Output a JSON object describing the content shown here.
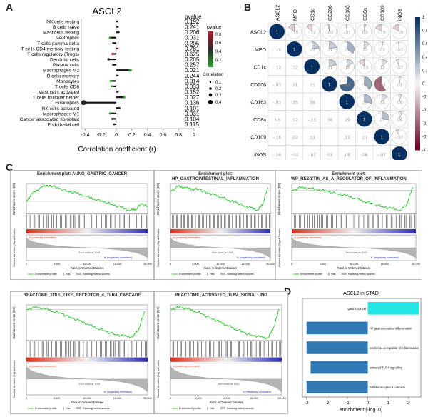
{
  "panels": {
    "a": "A",
    "b": "B",
    "c": "C",
    "d": "D"
  },
  "panel_a": {
    "title": "ASCL2",
    "pvalue_header": "pvalue",
    "xlabel": "Correlation coefficient (r)",
    "legend_pvalue_title": "pvalue",
    "legend_pvalue_ticks": [
      "0.8",
      "0.6",
      "0.4",
      "0.2"
    ],
    "legend_corr_title": "Correlation",
    "legend_corr_values": [
      "0.1",
      "0.2",
      "0.3",
      "0.4"
    ]
  },
  "panel_b": {
    "labels": [
      "ASCL2",
      "MPO",
      "CD1c",
      "CD206",
      "CD163",
      "CD8a",
      "CD109",
      "iNOS"
    ],
    "colorbar_ticks": [
      "1",
      "0.8",
      "0.6",
      "0.4",
      "0.2",
      "0",
      "-0.2",
      "-0.4",
      "-0.6",
      "-0.8",
      "-1"
    ]
  },
  "panel_d": {
    "title": "ASCL2 in STAD",
    "xlabel": "enrichment (-log10)"
  },
  "gsea_common": {
    "ylabel_es": "Enrichment score (ES)",
    "ylabel_rank": "Ranked list metric (Signal2Noise)",
    "xlabel": "Rank in Ordered Dataset",
    "pos_label": "'a' (positively correlated)",
    "neg_label": "'b' (negatively correlated)",
    "zero_cross": "Zero cross at 1049",
    "legend_profile": "Enrichment profile",
    "legend_hits": "Hits",
    "legend_ranking": "Ranking metric scores",
    "x_ticks": [
      "0",
      "5,000",
      "10,000",
      "15,000",
      "20,000"
    ]
  },
  "chart_data": [
    {
      "type": "scatter",
      "title": "ASCL2",
      "xlabel": "Correlation coefficient (r)",
      "xlim": [
        -0.45,
        1.0
      ],
      "x_ticks": [
        -0.4,
        -0.2,
        0.0,
        0.2,
        0.4,
        0.6,
        0.8,
        1.0
      ],
      "categories": [
        "NK cells resting",
        "B cells naive",
        "Mast cells resting",
        "Neutrophils",
        "T cells gamma delta",
        "T cells CD4 memory resting",
        "T cells regulatory (Tregs)",
        "Dendritic cells",
        "Plasma cells",
        "Macrophages M2",
        "B cells memory",
        "Monocytes",
        "T cells CD8",
        "Mast cells activated",
        "T cells follicular helper",
        "Eosinophils",
        "NK cells activated",
        "Macrophages M1",
        "Cancer associated fibroblast",
        "Endothelial cell"
      ],
      "r": [
        0.01,
        0.02,
        0.03,
        -0.08,
        -0.04,
        0.02,
        -0.05,
        -0.1,
        -0.04,
        0.18,
        0.02,
        -0.07,
        -0.06,
        0.02,
        0.1,
        -0.42,
        0.04,
        -0.08,
        -0.05,
        -0.03
      ],
      "pvalue": [
        "0.192",
        "0.241",
        "0.206",
        "0.031",
        "0.205",
        "0.781",
        "0.625",
        "0.205",
        "0.257",
        "0.021",
        "0.244",
        "0.014",
        "0.033",
        "0.152",
        "0.027",
        "0.136",
        "0.101",
        "0.031",
        "0.104",
        "0.115"
      ]
    },
    {
      "type": "heatmap",
      "rows": [
        "ASCL2",
        "MPO",
        "CD1c",
        "CD206",
        "CD163",
        "CD8a",
        "CD109",
        "iNOS"
      ],
      "cols": [
        "ASCL2",
        "MPO",
        "CD1c",
        "CD206",
        "CD163",
        "CD8a",
        "CD109",
        "iNOS"
      ],
      "values": [
        [
          1,
          -0.15,
          -0.13,
          -0.03,
          -0.01,
          0.03,
          -0.16,
          -0.16
        ],
        [
          -0.15,
          1,
          0.22,
          0.21,
          0.35,
          0.12,
          0.03,
          -0.02
        ],
        [
          -0.13,
          0.22,
          1,
          0.21,
          0.16,
          -0.13,
          0.13,
          -0.07
        ],
        [
          -0.03,
          0.21,
          0.21,
          1,
          0.73,
          0.38,
          -0.59,
          0.03
        ],
        [
          -0.01,
          0.35,
          0.16,
          0.73,
          1,
          0.29,
          0.13,
          0.05
        ],
        [
          0.03,
          0.12,
          -0.13,
          0.38,
          0.29,
          1,
          0.27,
          0.06
        ],
        [
          -0.16,
          0.03,
          0.13,
          -0.59,
          0.13,
          0.27,
          1,
          -0.07
        ],
        [
          -0.16,
          -0.02,
          -0.07,
          0.03,
          0.05,
          0.06,
          -0.07,
          1
        ]
      ],
      "colorbar": [
        -1,
        1
      ]
    },
    {
      "type": "line",
      "title": "Enrichment plot: AUNG_GASTRIC_CANCER",
      "xlabel": "Rank in Ordered Dataset",
      "ylabel": "Enrichment score (ES)",
      "x": [
        0,
        1000,
        2500,
        4000,
        5500,
        7000,
        8500,
        10000,
        11500,
        13000,
        14500,
        16000,
        17500,
        18500,
        19500,
        20500
      ],
      "y": [
        0.0,
        0.15,
        0.28,
        0.32,
        0.25,
        0.2,
        0.16,
        0.1,
        0.05,
        -0.01,
        -0.06,
        -0.12,
        -0.18,
        -0.15,
        -0.05,
        -0.1
      ],
      "ylim": [
        -0.25,
        0.35
      ]
    },
    {
      "type": "line",
      "title": "Enrichment plot: HP_GASTROINTESTINAL_INFLAMMATION",
      "xlabel": "Rank in Ordered Dataset",
      "ylabel": "Enrichment score (ES)",
      "x": [
        0,
        1500,
        3000,
        4500,
        6000,
        7500,
        9000,
        10500,
        12000,
        13500,
        15000,
        16500,
        18000,
        19000,
        20000
      ],
      "y": [
        0.0,
        0.06,
        0.05,
        0.03,
        0.02,
        -0.02,
        -0.05,
        -0.08,
        -0.12,
        -0.15,
        -0.19,
        -0.22,
        -0.25,
        -0.15,
        0.05
      ],
      "ylim": [
        -0.3,
        0.1
      ]
    },
    {
      "type": "line",
      "title": "Enrichment plot: WP_RESISTIN_AS_A_REGULATOR_OF_INFLAMMATION",
      "xlabel": "Rank in Ordered Dataset",
      "ylabel": "Enrichment score (ES)",
      "x": [
        0,
        1500,
        3000,
        4500,
        6000,
        7500,
        9000,
        10500,
        12000,
        13500,
        15000,
        16500,
        18000,
        19000,
        20000
      ],
      "y": [
        0.0,
        0.04,
        0.03,
        0.01,
        -0.02,
        -0.05,
        -0.08,
        -0.12,
        -0.16,
        -0.2,
        -0.24,
        -0.27,
        -0.3,
        -0.2,
        0.05
      ],
      "ylim": [
        -0.35,
        0.1
      ]
    },
    {
      "type": "line",
      "title": "REACTOME_TOLL_LIKE_RECEPTOR_4_TLR4_CASCADE",
      "xlabel": "Rank in Ordered Dataset",
      "ylabel": "Enrichment score (ES)",
      "x": [
        0,
        1500,
        3000,
        4500,
        6000,
        7500,
        9000,
        10500,
        12000,
        13500,
        15000,
        16500,
        18000,
        19000,
        20000
      ],
      "y": [
        0.0,
        0.02,
        0.01,
        -0.02,
        -0.05,
        -0.09,
        -0.13,
        -0.17,
        -0.21,
        -0.25,
        -0.28,
        -0.3,
        -0.31,
        -0.22,
        -0.02
      ],
      "ylim": [
        -0.35,
        0.05
      ]
    },
    {
      "type": "line",
      "title": "REACTOME_ACTIVATED_TLR4_SIGNALLING",
      "xlabel": "Rank in Ordered Dataset",
      "ylabel": "Enrichment score (ES)",
      "x": [
        0,
        1500,
        3000,
        4500,
        6000,
        7500,
        9000,
        10500,
        12000,
        13500,
        15000,
        16500,
        18000,
        19000,
        20000
      ],
      "y": [
        0.0,
        0.02,
        0.01,
        -0.02,
        -0.06,
        -0.1,
        -0.14,
        -0.18,
        -0.22,
        -0.26,
        -0.29,
        -0.31,
        -0.32,
        -0.2,
        0.0
      ],
      "ylim": [
        -0.35,
        0.05
      ]
    },
    {
      "type": "bar",
      "title": "ASCL2 in STAD",
      "xlabel": "enrichment (-log10)",
      "categories": [
        "gastric cancer",
        "HP gastrointestinal inflammation",
        "resistin as a regulator of inflammation",
        "activated TLR4 signalling",
        "Toll like receptor 4 cascade"
      ],
      "values": [
        2.5,
        -3.0,
        -3.0,
        -2.8,
        -3.0
      ],
      "colors": [
        "#22e6e6",
        "#2f79b5",
        "#2f79b5",
        "#2f79b5",
        "#2f79b5"
      ],
      "xlim": [
        -3.2,
        2.6
      ],
      "x_ticks": [
        -3,
        -2,
        -1,
        0,
        1,
        2
      ]
    }
  ]
}
